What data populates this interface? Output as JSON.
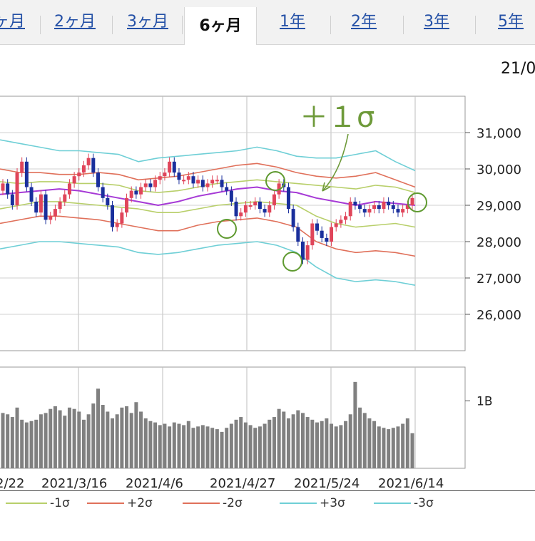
{
  "tabs": [
    {
      "label": "ヶ月"
    },
    {
      "label": "2ヶ月"
    },
    {
      "label": "3ヶ月"
    },
    {
      "label": "6ヶ月",
      "active": true
    },
    {
      "label": "1年"
    },
    {
      "label": "2年"
    },
    {
      "label": "3年"
    },
    {
      "label": "5年"
    }
  ],
  "header_date": "21/0",
  "annotation": {
    "text": "＋１σ",
    "color": "#6e9a3a"
  },
  "legend": [
    {
      "label": "-1σ",
      "color": "#b8cf6a"
    },
    {
      "label": "+2σ",
      "color": "#e0705a"
    },
    {
      "label": "-2σ",
      "color": "#e0705a"
    },
    {
      "label": "+3σ",
      "color": "#6fcfd6"
    },
    {
      "label": "-3σ",
      "color": "#6fcfd6"
    }
  ],
  "colors": {
    "up": "#e0455a",
    "down": "#1a2f9c",
    "ma": "#a63ad6",
    "volume": "#808080",
    "grid": "#bdbdbd"
  },
  "chart_data": [
    {
      "type": "candlestick",
      "x_tick_labels": [
        "2/22",
        "2021/3/16",
        "2021/4/6",
        "2021/4/27",
        "2021/5/24",
        "2021/6/14"
      ],
      "y_tick_labels": [
        "31,000",
        "30,000",
        "29,000",
        "28,000",
        "27,000",
        "26,000"
      ],
      "ylim": [
        25000,
        32000
      ],
      "close": [
        29600,
        29300,
        29000,
        29900,
        30200,
        29500,
        29100,
        28800,
        29300,
        28600,
        28700,
        28900,
        29100,
        29300,
        29600,
        29800,
        29900,
        30100,
        30300,
        29900,
        29500,
        29200,
        29000,
        28400,
        28500,
        28800,
        29200,
        29400,
        29300,
        29500,
        29600,
        29500,
        29700,
        29800,
        29900,
        30200,
        29900,
        29700,
        29700,
        29800,
        29600,
        29700,
        29500,
        29600,
        29700,
        29700,
        29500,
        29400,
        29100,
        28700,
        28800,
        29000,
        29000,
        29100,
        28900,
        28800,
        29000,
        29300,
        29600,
        29500,
        28900,
        28400,
        28000,
        27500,
        27900,
        28500,
        28300,
        28100,
        28000,
        28400,
        28500,
        28600,
        28700,
        29100,
        29000,
        28900,
        28800,
        28900,
        29000,
        28900,
        29100,
        29000,
        28900,
        28800,
        28900,
        29000,
        29200
      ],
      "bands": {
        "+3σ": [
          30800,
          30700,
          30600,
          30500,
          30500,
          30450,
          30400,
          30200,
          30300,
          30350,
          30400,
          30450,
          30500,
          30600,
          30500,
          30350,
          30300,
          30300,
          30400,
          30500,
          30200,
          29950
        ],
        "+2σ": [
          30000,
          29900,
          29900,
          29850,
          29850,
          29900,
          29850,
          29700,
          29750,
          29800,
          29900,
          30000,
          30100,
          30150,
          30050,
          29900,
          29800,
          29750,
          29800,
          29900,
          29700,
          29500
        ],
        "+1σ": [
          29650,
          29600,
          29650,
          29650,
          29600,
          29600,
          29550,
          29400,
          29350,
          29400,
          29500,
          29600,
          29650,
          29700,
          29650,
          29600,
          29550,
          29500,
          29450,
          29550,
          29500,
          29350
        ],
        "MA": [
          29300,
          29350,
          29400,
          29450,
          29400,
          29300,
          29200,
          29100,
          29000,
          29100,
          29250,
          29350,
          29450,
          29500,
          29400,
          29350,
          29200,
          29100,
          29000,
          29100,
          29050,
          29000
        ],
        "-1σ": [
          28900,
          29000,
          29100,
          29100,
          29050,
          29000,
          28950,
          28900,
          28800,
          28800,
          28900,
          29000,
          29050,
          29100,
          29050,
          29000,
          28700,
          28500,
          28400,
          28450,
          28500,
          28400
        ],
        "-2σ": [
          28500,
          28600,
          28700,
          28700,
          28650,
          28600,
          28500,
          28400,
          28300,
          28300,
          28450,
          28550,
          28600,
          28650,
          28550,
          28400,
          28000,
          27800,
          27700,
          27750,
          27700,
          27600
        ],
        "-3σ": [
          27800,
          27900,
          28000,
          28000,
          27950,
          27900,
          27850,
          27700,
          27650,
          27700,
          27800,
          27900,
          27950,
          28000,
          27900,
          27700,
          27300,
          27000,
          26900,
          26950,
          26900,
          26800
        ]
      }
    },
    {
      "type": "bar",
      "y_tick_labels": [
        "1B"
      ],
      "ylim": [
        0,
        1.5
      ],
      "values": [
        0.82,
        0.8,
        0.76,
        0.9,
        0.72,
        0.68,
        0.7,
        0.72,
        0.8,
        0.82,
        0.88,
        0.92,
        0.86,
        0.78,
        0.9,
        0.88,
        0.84,
        0.72,
        0.8,
        0.96,
        1.18,
        0.94,
        0.84,
        0.74,
        0.8,
        0.9,
        0.92,
        0.82,
        0.98,
        0.84,
        0.74,
        0.7,
        0.68,
        0.64,
        0.66,
        0.62,
        0.68,
        0.66,
        0.64,
        0.7,
        0.6,
        0.62,
        0.64,
        0.62,
        0.6,
        0.58,
        0.54,
        0.6,
        0.66,
        0.72,
        0.76,
        0.68,
        0.64,
        0.6,
        0.62,
        0.66,
        0.72,
        0.76,
        0.88,
        0.84,
        0.74,
        0.8,
        0.86,
        0.82,
        0.76,
        0.72,
        0.68,
        0.7,
        0.74,
        0.66,
        0.62,
        0.64,
        0.7,
        0.8,
        1.28,
        0.9,
        0.82,
        0.74,
        0.7,
        0.62,
        0.6,
        0.58,
        0.6,
        0.62,
        0.66,
        0.74,
        0.52
      ]
    }
  ]
}
